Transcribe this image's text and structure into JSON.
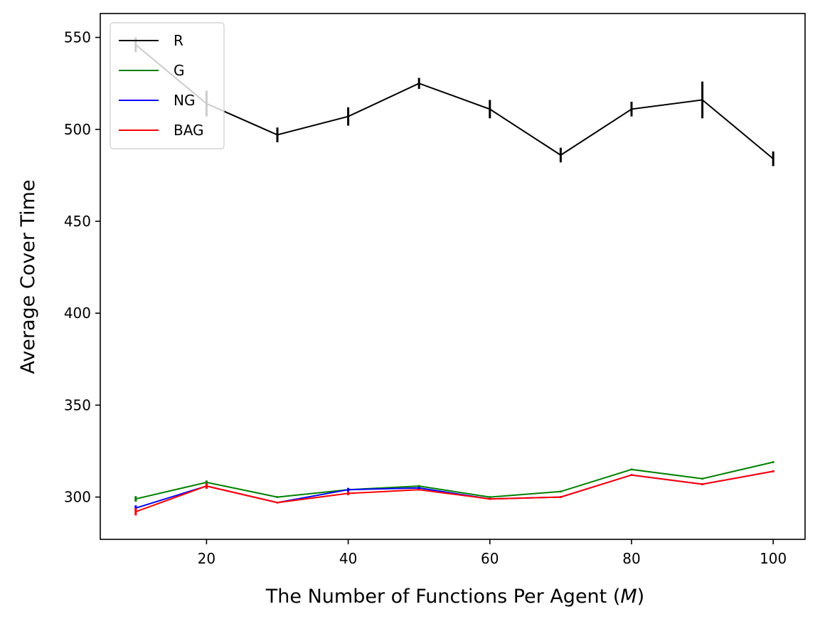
{
  "chart_data": {
    "type": "line",
    "title": "",
    "xlabel_main": "The Number of Functions Per Agent (",
    "xlabel_var": "M",
    "xlabel_end": ")",
    "ylabel": "Average Cover Time",
    "xlim": [
      5,
      104.5
    ],
    "ylim": [
      277,
      563
    ],
    "xticks": [
      20,
      40,
      60,
      80,
      100
    ],
    "yticks": [
      300,
      350,
      400,
      450,
      500,
      550
    ],
    "grid": false,
    "legend_position": "upper-left",
    "x": [
      10,
      20,
      30,
      40,
      50,
      60,
      70,
      80,
      90,
      100
    ],
    "series": [
      {
        "name": "R",
        "color": "#000000",
        "values": [
          546,
          514,
          497,
          507,
          525,
          511,
          486,
          511,
          516,
          484
        ],
        "errors": [
          4,
          7,
          4,
          5,
          3,
          5,
          4,
          4,
          10,
          4
        ]
      },
      {
        "name": "G",
        "color": "#008000",
        "values": [
          299,
          308,
          300,
          304,
          306,
          300,
          303,
          315,
          310,
          319
        ],
        "errors": [
          1.5,
          1,
          0.5,
          0.5,
          0.5,
          0.5,
          0.5,
          0.5,
          0.5,
          0.5
        ]
      },
      {
        "name": "NG",
        "color": "#0000ff",
        "values": [
          294,
          306,
          297,
          304,
          305,
          299,
          300,
          312,
          307,
          314
        ],
        "errors": [
          1.5,
          1,
          0.5,
          1,
          0.5,
          0.5,
          0.5,
          0.5,
          0.5,
          0.5
        ]
      },
      {
        "name": "BAG",
        "color": "#ff0000",
        "values": [
          292,
          306,
          297,
          302,
          304,
          299,
          300,
          312,
          307,
          314
        ],
        "errors": [
          2,
          1.5,
          0.5,
          1,
          0.5,
          0.5,
          0.5,
          0.5,
          0.5,
          0.5
        ]
      }
    ]
  }
}
